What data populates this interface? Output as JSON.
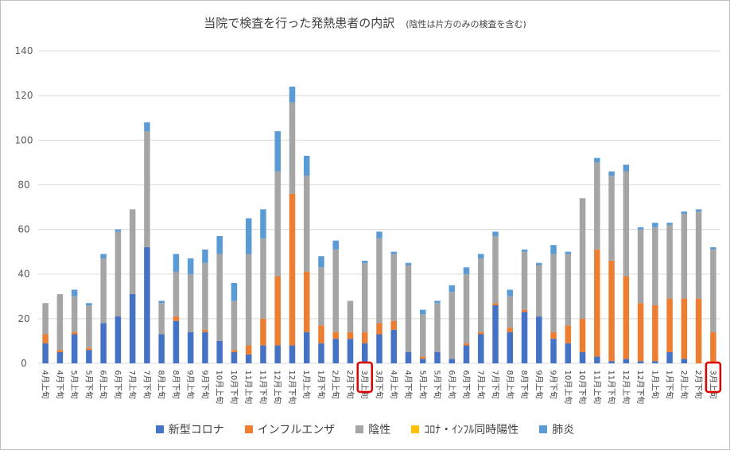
{
  "chart_data": {
    "type": "bar",
    "stacked": true,
    "title": "当院で検査を行った発熱患者の内訳",
    "subtitle": "(陰性は片方のみの検査を含む)",
    "ylim": [
      0,
      140
    ],
    "yticks": [
      0,
      20,
      40,
      60,
      80,
      100,
      120,
      140
    ],
    "grid": true,
    "legend_position": "bottom",
    "categories": [
      "4月上旬",
      "4月下旬",
      "5月上旬",
      "5月下旬",
      "6月上旬",
      "6月下旬",
      "7月上旬",
      "7月下旬",
      "8月上旬",
      "8月下旬",
      "9月上旬",
      "9月下旬",
      "10月上旬",
      "10月下旬",
      "11月上旬",
      "11月下旬",
      "12月上旬",
      "12月下旬",
      "1月上旬",
      "1月下旬",
      "2月上旬",
      "2月下旬",
      "3月上旬",
      "3月下旬",
      "4月上旬",
      "4月下旬",
      "5月上旬",
      "5月下旬",
      "6月上旬",
      "6月下旬",
      "7月上旬",
      "7月下旬",
      "8月上旬",
      "8月下旬",
      "9月上旬",
      "9月下旬",
      "10月上旬",
      "10月下旬",
      "11月上旬",
      "11月下旬",
      "12月上旬",
      "12月下旬",
      "1月上旬",
      "1月下旬",
      "2月上旬",
      "2月下旬",
      "3月上旬"
    ],
    "highlighted_categories": [
      22,
      46
    ],
    "series": [
      {
        "name": "新型コロナ",
        "color": "#4472c4",
        "values": [
          9,
          5,
          13,
          6,
          18,
          21,
          31,
          52,
          13,
          19,
          14,
          14,
          10,
          5,
          4,
          8,
          8,
          8,
          14,
          9,
          11,
          11,
          9,
          13,
          15,
          5,
          2,
          5,
          2,
          8,
          13,
          26,
          14,
          23,
          21,
          11,
          9,
          5,
          3,
          1,
          2,
          1,
          1,
          5,
          2,
          0,
          0
        ]
      },
      {
        "name": "インフルエンザ",
        "color": "#ed7d31",
        "values": [
          4,
          1,
          1,
          1,
          0,
          0,
          0,
          0,
          0,
          2,
          0,
          1,
          0,
          1,
          4,
          12,
          31,
          68,
          27,
          8,
          3,
          3,
          5,
          5,
          4,
          0,
          1,
          0,
          0,
          1,
          1,
          1,
          2,
          1,
          0,
          3,
          8,
          15,
          48,
          45,
          37,
          26,
          25,
          24,
          27,
          29,
          14
        ]
      },
      {
        "name": "陰性",
        "color": "#a5a5a5",
        "values": [
          14,
          25,
          16,
          19,
          29,
          38,
          38,
          52,
          14,
          20,
          26,
          30,
          39,
          22,
          41,
          36,
          47,
          41,
          43,
          26,
          37,
          14,
          31,
          38,
          30,
          39,
          19,
          22,
          30,
          31,
          33,
          30,
          14,
          26,
          23,
          35,
          32,
          54,
          39,
          38,
          47,
          33,
          35,
          33,
          38,
          39,
          37
        ]
      },
      {
        "name": "ｺﾛﾅ・ｲﾝﾌﾙ同時陽性",
        "color": "#ffc000",
        "values": [
          0,
          0,
          0,
          0,
          0,
          0,
          0,
          0,
          0,
          0,
          0,
          0,
          0,
          0,
          0,
          0,
          0,
          0,
          0,
          0,
          0,
          0,
          0,
          0,
          0,
          0,
          0,
          0,
          0,
          0,
          0,
          0,
          0,
          0,
          0,
          0,
          0,
          0,
          0,
          0,
          0,
          0,
          0,
          0,
          0,
          0,
          0
        ]
      },
      {
        "name": "肺炎",
        "color": "#5b9bd5",
        "values": [
          0,
          0,
          3,
          1,
          2,
          1,
          0,
          4,
          1,
          8,
          7,
          6,
          8,
          8,
          16,
          13,
          18,
          7,
          9,
          5,
          4,
          0,
          1,
          3,
          1,
          1,
          2,
          1,
          3,
          3,
          2,
          2,
          3,
          1,
          1,
          4,
          1,
          0,
          2,
          2,
          3,
          1,
          2,
          1,
          1,
          1,
          1
        ]
      }
    ]
  }
}
